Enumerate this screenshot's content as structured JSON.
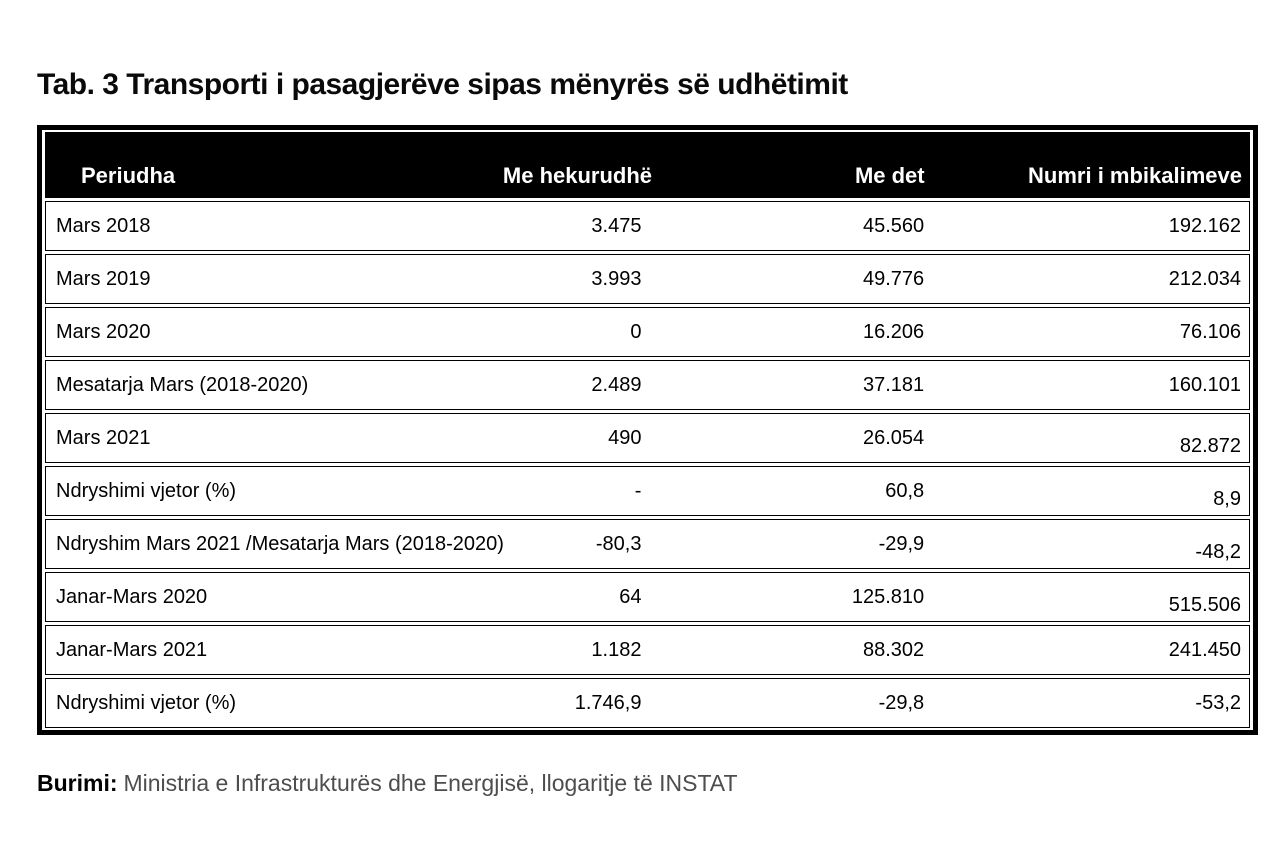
{
  "title": "Tab. 3 Transporti i pasagjerëve sipas mënyrës së udhëtimit",
  "table": {
    "columns": [
      "Periudha",
      "Me hekurudhë",
      "Me det",
      "Numri i mbikalimeve"
    ],
    "rows": [
      {
        "label": "Mars 2018",
        "values": [
          "3.475",
          "45.560",
          "192.162"
        ]
      },
      {
        "label": "Mars 2019",
        "values": [
          "3.993",
          "49.776",
          "212.034"
        ]
      },
      {
        "label": "Mars 2020",
        "values": [
          "0",
          "16.206",
          "76.106"
        ]
      },
      {
        "label": "Mesatarja Mars (2018-2020)",
        "values": [
          "2.489",
          "37.181",
          "160.101"
        ]
      },
      {
        "label": "Mars 2021",
        "values": [
          "490",
          "26.054",
          "82.872"
        ]
      },
      {
        "label": "Ndryshimi vjetor (%)",
        "values": [
          "-",
          "60,8",
          "8,9"
        ]
      },
      {
        "label": "Ndryshim Mars 2021 /Mesatarja Mars (2018-2020)",
        "values": [
          "-80,3",
          "-29,9",
          "-48,2"
        ]
      },
      {
        "label": "Janar-Mars 2020",
        "values": [
          "64",
          "125.810",
          "515.506"
        ]
      },
      {
        "label": "Janar-Mars 2021",
        "values": [
          "1.182",
          "88.302",
          "241.450"
        ]
      },
      {
        "label": "Ndryshimi vjetor (%)",
        "values": [
          "1.746,9",
          "-29,8",
          "-53,2"
        ]
      }
    ]
  },
  "source": {
    "label": "Burimi:",
    "text": "Ministria e Infrastrukturës dhe Energjisë, llogaritje të INSTAT"
  },
  "colors": {
    "header_bg": "#000000",
    "header_text": "#ffffff",
    "border": "#000000",
    "source_text": "#4d4d4d"
  }
}
